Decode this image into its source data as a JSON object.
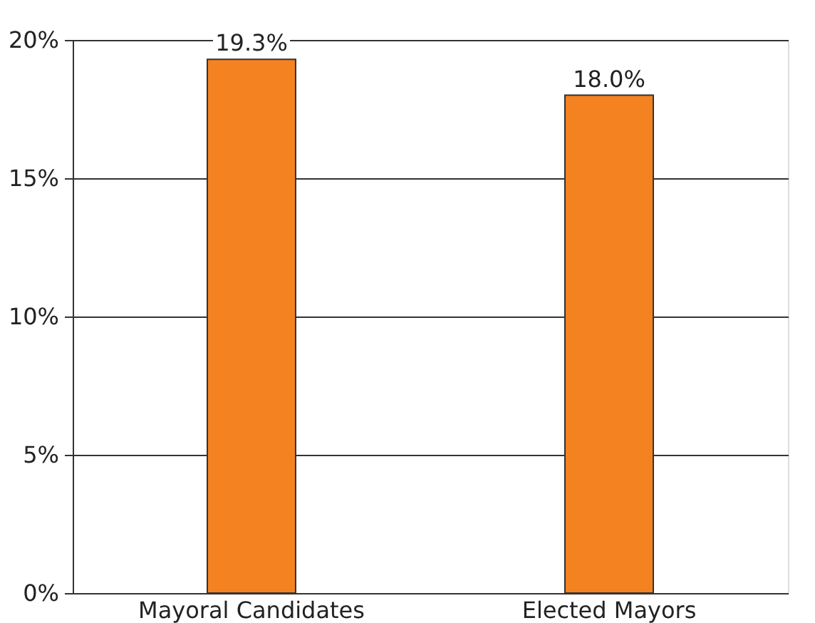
{
  "chart_data": {
    "type": "bar",
    "categories": [
      "Mayoral Candidates",
      "Elected Mayors"
    ],
    "values": [
      19.3,
      18.0
    ],
    "color": "#f58220",
    "value_labels": [
      "19.3%",
      "18.0%"
    ],
    "ylim": [
      0,
      20
    ],
    "yticks": [
      {
        "value": 0,
        "label": "0%"
      },
      {
        "value": 5,
        "label": "5%"
      },
      {
        "value": 10,
        "label": "10%"
      },
      {
        "value": 15,
        "label": "15%"
      },
      {
        "value": 20,
        "label": "20%"
      }
    ],
    "grid": "y"
  }
}
